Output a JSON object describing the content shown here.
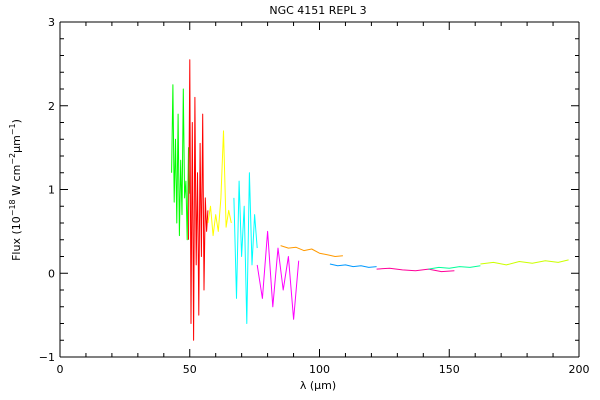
{
  "chart_data": {
    "type": "line",
    "title": "NGC 4151  REPL 3",
    "xlabel": "λ (µm)",
    "ylabel_parts": {
      "prefix": "Flux (10",
      "exp1": "−18",
      "mid1": " W cm",
      "exp2": "−2",
      "mid2": "µm",
      "exp3": "−1",
      "suffix": ")"
    },
    "xlim": [
      0,
      200
    ],
    "ylim": [
      -1,
      3
    ],
    "x_ticks": [
      0,
      50,
      100,
      150,
      200
    ],
    "y_ticks": [
      -1,
      0,
      1,
      2,
      3
    ],
    "x_minor_step": 10,
    "y_minor_step": 0.2,
    "grid": false,
    "series": [
      {
        "color": "#00ff00",
        "x": [
          43.0,
          43.5,
          44.0,
          44.5,
          45.0,
          45.5,
          46.0,
          46.5,
          47.0,
          47.5,
          48.0,
          48.5,
          49.0,
          49.5,
          50.0
        ],
        "y": [
          1.2,
          2.25,
          0.85,
          1.6,
          0.6,
          1.9,
          0.45,
          1.35,
          0.7,
          2.2,
          0.9,
          1.1,
          0.4,
          1.5,
          0.95
        ]
      },
      {
        "color": "#ff0000",
        "x": [
          49.5,
          50.0,
          50.5,
          51.0,
          51.5,
          52.0,
          52.5,
          53.0,
          53.5,
          54.0,
          54.5,
          55.0,
          55.5,
          56.0,
          56.5,
          57.0
        ],
        "y": [
          0.4,
          2.55,
          -0.6,
          1.8,
          -0.8,
          2.1,
          0.1,
          1.2,
          -0.5,
          1.55,
          0.2,
          1.9,
          -0.2,
          0.9,
          0.5,
          0.75
        ]
      },
      {
        "color": "#ffff00",
        "x": [
          57.0,
          58.0,
          59.0,
          60.0,
          61.0,
          62.0,
          63.0,
          64.0,
          65.0,
          66.0
        ],
        "y": [
          0.6,
          0.8,
          0.45,
          0.7,
          0.5,
          0.9,
          1.7,
          0.55,
          0.75,
          0.6
        ]
      },
      {
        "color": "#00ffff",
        "x": [
          67.0,
          68.0,
          69.0,
          70.0,
          71.0,
          72.0,
          73.0,
          74.0,
          75.0,
          76.0
        ],
        "y": [
          0.9,
          -0.3,
          1.1,
          0.2,
          0.8,
          -0.6,
          1.2,
          0.1,
          0.7,
          0.3
        ]
      },
      {
        "color": "#ff00ff",
        "x": [
          76.0,
          78.0,
          80.0,
          82.0,
          84.0,
          86.0,
          88.0,
          90.0,
          92.0
        ],
        "y": [
          0.1,
          -0.3,
          0.5,
          -0.4,
          0.3,
          -0.2,
          0.2,
          -0.55,
          0.15
        ]
      },
      {
        "color": "#ff9900",
        "x": [
          85.0,
          88.0,
          91.0,
          94.0,
          97.0,
          100.0,
          103.0,
          106.0,
          109.0
        ],
        "y": [
          0.33,
          0.3,
          0.31,
          0.27,
          0.29,
          0.24,
          0.22,
          0.2,
          0.21
        ]
      },
      {
        "color": "#0099ff",
        "x": [
          104.0,
          107.0,
          110.0,
          113.0,
          116.0,
          119.0,
          122.0
        ],
        "y": [
          0.11,
          0.09,
          0.1,
          0.08,
          0.09,
          0.07,
          0.08
        ]
      },
      {
        "color": "#ff0099",
        "x": [
          122.0,
          127.0,
          132.0,
          137.0,
          142.0,
          147.0,
          152.0
        ],
        "y": [
          0.05,
          0.06,
          0.04,
          0.03,
          0.05,
          0.02,
          0.03
        ]
      },
      {
        "color": "#00ff99",
        "x": [
          142.0,
          146.0,
          150.0,
          154.0,
          158.0,
          162.0
        ],
        "y": [
          0.05,
          0.07,
          0.06,
          0.08,
          0.07,
          0.09
        ]
      },
      {
        "color": "#ccff00",
        "x": [
          162.0,
          167.0,
          172.0,
          177.0,
          182.0,
          187.0,
          192.0,
          196.0
        ],
        "y": [
          0.11,
          0.13,
          0.1,
          0.14,
          0.12,
          0.15,
          0.13,
          0.16
        ]
      }
    ]
  }
}
